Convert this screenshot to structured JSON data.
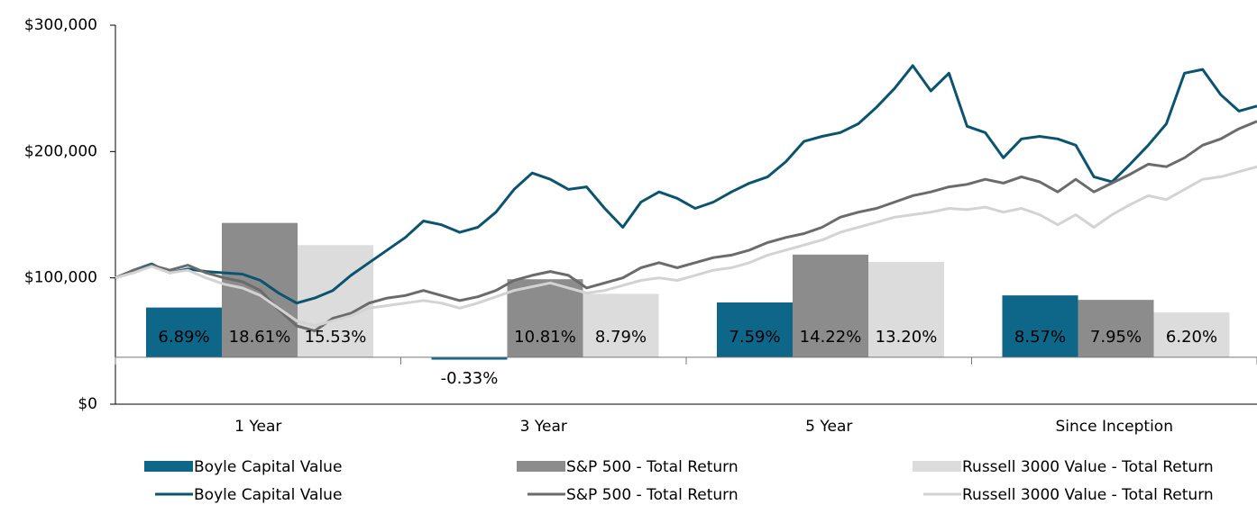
{
  "chart_data": {
    "type": "combo",
    "categories": [
      "1 Year",
      "3 Year",
      "5 Year",
      "Since Inception"
    ],
    "ylim": [
      0,
      300000
    ],
    "yticks": [
      {
        "value": 0,
        "label": "$0"
      },
      {
        "value": 100000,
        "label": "$100,000"
      },
      {
        "value": 200000,
        "label": "$200,000"
      },
      {
        "value": 300000,
        "label": "$300,000"
      }
    ],
    "y2lim": [
      -6.5,
      46
    ],
    "bar_series": [
      {
        "name": "Boyle Capital Value",
        "color": "#0e6688",
        "axis": "y2",
        "values": [
          6.89,
          -0.33,
          7.59,
          8.57
        ],
        "value_labels": [
          "6.89%",
          "-0.33%",
          "7.59%",
          "8.57%"
        ]
      },
      {
        "name": "S&P 500 - Total Return",
        "color": "#8c8c8c",
        "axis": "y2",
        "values": [
          18.61,
          10.81,
          14.22,
          7.95
        ],
        "value_labels": [
          "18.61%",
          "10.81%",
          "14.22%",
          "7.95%"
        ]
      },
      {
        "name": "Russell 3000 Value - Total Return",
        "color": "#dcdcdc",
        "axis": "y2",
        "values": [
          15.53,
          8.79,
          13.2,
          6.2
        ],
        "value_labels": [
          "15.53%",
          "8.79%",
          "13.20%",
          "6.20%"
        ]
      }
    ],
    "line_series": [
      {
        "name": "Boyle Capital Value",
        "color": "#0b5470",
        "values": [
          100000,
          106000,
          111000,
          104000,
          107000,
          105000,
          104000,
          103000,
          98000,
          88000,
          80000,
          84000,
          90000,
          102000,
          112000,
          122000,
          132000,
          145000,
          142000,
          136000,
          140000,
          152000,
          170000,
          183000,
          178000,
          170000,
          172000,
          155000,
          140000,
          160000,
          168000,
          163000,
          155000,
          160000,
          168000,
          175000,
          180000,
          192000,
          208000,
          212000,
          215000,
          222000,
          235000,
          250000,
          268000,
          248000,
          262000,
          220000,
          215000,
          195000,
          210000,
          212000,
          210000,
          205000,
          180000,
          176000,
          190000,
          205000,
          222000,
          262000,
          265000,
          245000,
          232000,
          236000
        ]
      },
      {
        "name": "S&P 500 - Total Return",
        "color": "#6b6b6b",
        "values": [
          100000,
          106000,
          110000,
          106000,
          110000,
          104000,
          100000,
          97000,
          90000,
          75000,
          62000,
          58000,
          68000,
          72000,
          80000,
          84000,
          86000,
          90000,
          86000,
          82000,
          85000,
          90000,
          98000,
          102000,
          105000,
          102000,
          92000,
          96000,
          100000,
          108000,
          112000,
          108000,
          112000,
          116000,
          118000,
          122000,
          128000,
          132000,
          135000,
          140000,
          148000,
          152000,
          155000,
          160000,
          165000,
          168000,
          172000,
          174000,
          178000,
          175000,
          180000,
          176000,
          168000,
          178000,
          168000,
          175000,
          182000,
          190000,
          188000,
          195000,
          205000,
          210000,
          218000,
          224000
        ]
      },
      {
        "name": "Russell 3000 Value - Total Return",
        "color": "#d3d3d3",
        "values": [
          100000,
          104000,
          109000,
          104000,
          106000,
          100000,
          95000,
          92000,
          86000,
          76000,
          66000,
          62000,
          66000,
          70000,
          76000,
          78000,
          80000,
          82000,
          80000,
          76000,
          80000,
          85000,
          90000,
          93000,
          96000,
          92000,
          88000,
          90000,
          94000,
          98000,
          100000,
          98000,
          102000,
          106000,
          108000,
          112000,
          118000,
          122000,
          126000,
          130000,
          136000,
          140000,
          144000,
          148000,
          150000,
          152000,
          155000,
          154000,
          156000,
          152000,
          155000,
          150000,
          142000,
          150000,
          140000,
          150000,
          158000,
          165000,
          162000,
          170000,
          178000,
          180000,
          184000,
          188000
        ]
      }
    ]
  }
}
